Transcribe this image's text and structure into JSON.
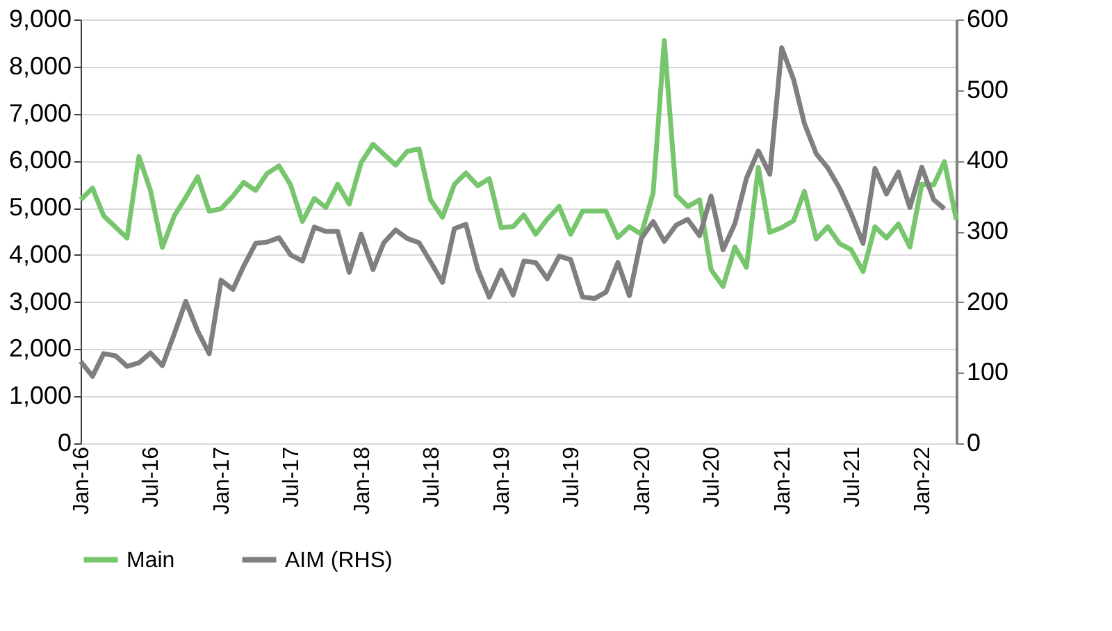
{
  "chart_data": {
    "type": "line",
    "x": [
      "2016-01",
      "2016-02",
      "2016-03",
      "2016-04",
      "2016-05",
      "2016-06",
      "2016-07",
      "2016-08",
      "2016-09",
      "2016-10",
      "2016-11",
      "2016-12",
      "2017-01",
      "2017-02",
      "2017-03",
      "2017-04",
      "2017-05",
      "2017-06",
      "2017-07",
      "2017-08",
      "2017-09",
      "2017-10",
      "2017-11",
      "2017-12",
      "2018-01",
      "2018-02",
      "2018-03",
      "2018-04",
      "2018-05",
      "2018-06",
      "2018-07",
      "2018-08",
      "2018-09",
      "2018-10",
      "2018-11",
      "2018-12",
      "2019-01",
      "2019-02",
      "2019-03",
      "2019-04",
      "2019-05",
      "2019-06",
      "2019-07",
      "2019-08",
      "2019-09",
      "2019-10",
      "2019-11",
      "2019-12",
      "2020-01",
      "2020-02",
      "2020-03",
      "2020-04",
      "2020-05",
      "2020-06",
      "2020-07",
      "2020-08",
      "2020-09",
      "2020-10",
      "2020-11",
      "2020-12",
      "2021-01",
      "2021-02",
      "2021-03",
      "2021-04",
      "2021-05",
      "2021-06",
      "2021-07",
      "2021-08",
      "2021-09",
      "2021-10",
      "2021-11",
      "2021-12",
      "2022-01",
      "2022-02",
      "2022-03",
      "2022-04"
    ],
    "series": [
      {
        "name": "Main",
        "color": "#77c66e",
        "values": [
          5170,
          5420,
          4830,
          4590,
          4360,
          6090,
          5370,
          4160,
          4830,
          5220,
          5660,
          4930,
          4980,
          5250,
          5540,
          5370,
          5730,
          5890,
          5490,
          4710,
          5200,
          5010,
          5500,
          5080,
          5960,
          6350,
          6140,
          5910,
          6200,
          6250,
          5170,
          4800,
          5500,
          5740,
          5470,
          5620,
          4580,
          4600,
          4850,
          4440,
          4760,
          5030,
          4440,
          4930,
          4930,
          4930,
          4370,
          4600,
          4440,
          5320,
          8550,
          5270,
          5030,
          5170,
          3690,
          3330,
          4170,
          3740,
          5860,
          4480,
          4580,
          4730,
          5350,
          4340,
          4600,
          4240,
          4110,
          3650,
          4600,
          4360,
          4660,
          4170,
          5500,
          5490,
          5980,
          4750
        ]
      },
      {
        "name": "AIM (RHS)",
        "color": "#7f7f7f",
        "axis": "y2",
        "values": [
          116,
          95,
          127,
          124,
          109,
          114,
          128,
          110,
          155,
          201,
          159,
          127,
          231,
          218,
          251,
          283,
          285,
          291,
          267,
          258,
          306,
          300,
          300,
          242,
          296,
          246,
          284,
          302,
          290,
          284,
          257,
          228,
          304,
          310,
          246,
          207,
          245,
          210,
          258,
          256,
          233,
          265,
          260,
          207,
          205,
          214,
          256,
          209,
          290,
          314,
          286,
          309,
          317,
          294,
          350,
          274,
          311,
          375,
          414,
          381,
          560,
          515,
          453,
          410,
          390,
          361,
          325,
          283,
          389,
          353,
          384,
          334,
          391,
          345,
          332,
          null
        ]
      }
    ],
    "xlim": [
      "2016-01",
      "2022-04"
    ],
    "xticks": [
      {
        "value": "2016-01",
        "label": "Jan-16"
      },
      {
        "value": "2016-07",
        "label": "Jul-16"
      },
      {
        "value": "2017-01",
        "label": "Jan-17"
      },
      {
        "value": "2017-07",
        "label": "Jul-17"
      },
      {
        "value": "2018-01",
        "label": "Jan-18"
      },
      {
        "value": "2018-07",
        "label": "Jul-18"
      },
      {
        "value": "2019-01",
        "label": "Jan-19"
      },
      {
        "value": "2019-07",
        "label": "Jul-19"
      },
      {
        "value": "2020-01",
        "label": "Jan-20"
      },
      {
        "value": "2020-07",
        "label": "Jul-20"
      },
      {
        "value": "2021-01",
        "label": "Jan-21"
      },
      {
        "value": "2021-07",
        "label": "Jul-21"
      },
      {
        "value": "2022-01",
        "label": "Jan-22"
      }
    ],
    "ylim": [
      0,
      9000
    ],
    "yticks": [
      0,
      {
        "value": 1000,
        "label": "1,000"
      },
      {
        "value": 2000,
        "label": "2,000"
      },
      {
        "value": 3000,
        "label": "3,000"
      },
      {
        "value": 4000,
        "label": "4,000"
      },
      {
        "value": 5000,
        "label": "5,000"
      },
      {
        "value": 6000,
        "label": "6,000"
      },
      {
        "value": 7000,
        "label": "7,000"
      },
      {
        "value": 8000,
        "label": "8,000"
      },
      {
        "value": 9000,
        "label": "9,000"
      }
    ],
    "y2lim": [
      0,
      600
    ],
    "y2ticks": [
      0,
      100,
      200,
      300,
      400,
      500,
      600
    ],
    "grid": "y",
    "legend": "bottom",
    "marker": "none",
    "line_style": "solid"
  }
}
